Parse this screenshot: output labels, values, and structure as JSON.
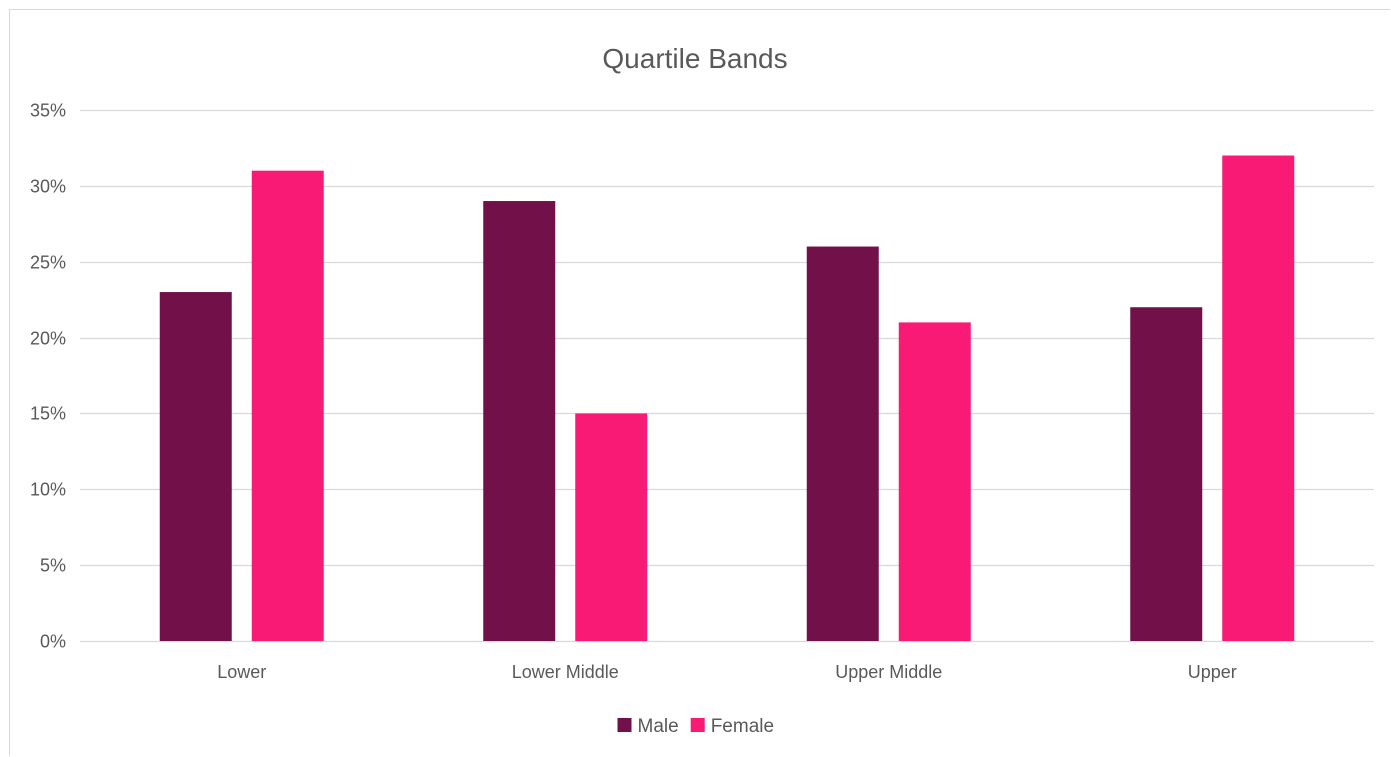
{
  "chart_data": {
    "type": "bar",
    "title": "Quartile Bands",
    "categories": [
      "Lower",
      "Lower Middle",
      "Upper Middle",
      "Upper"
    ],
    "series": [
      {
        "name": "Male",
        "color": "#72104a",
        "values": [
          23,
          29,
          26,
          22
        ]
      },
      {
        "name": "Female",
        "color": "#f81a75",
        "values": [
          31,
          15,
          21,
          32
        ]
      }
    ],
    "ylim": [
      0,
      35
    ],
    "yticks": [
      0,
      5,
      10,
      15,
      20,
      25,
      30,
      35
    ],
    "ytick_labels": [
      "0%",
      "5%",
      "10%",
      "15%",
      "20%",
      "25%",
      "30%",
      "35%"
    ],
    "grid": true,
    "gridline_color": "#d9d9d9",
    "legend_position": "bottom"
  }
}
